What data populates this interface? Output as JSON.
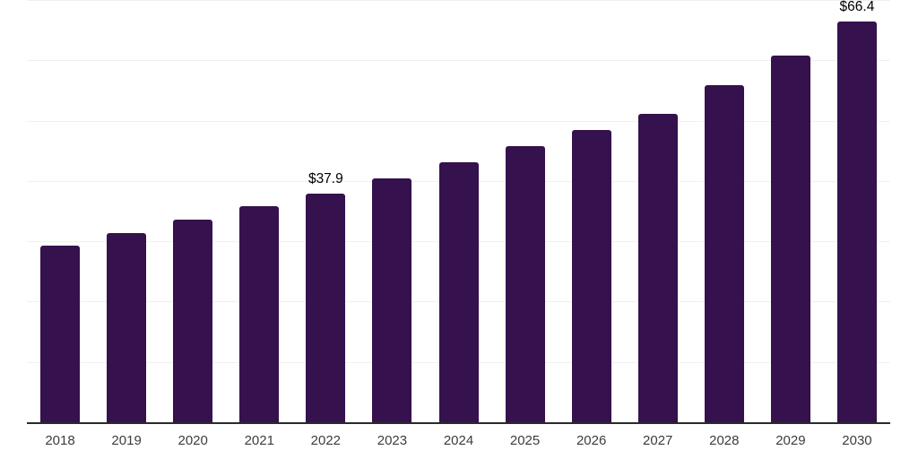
{
  "chart_data": {
    "type": "bar",
    "title": "",
    "xlabel": "",
    "ylabel": "",
    "categories": [
      "2018",
      "2019",
      "2020",
      "2021",
      "2022",
      "2023",
      "2024",
      "2025",
      "2026",
      "2027",
      "2028",
      "2029",
      "2030"
    ],
    "values": [
      29.3,
      31.4,
      33.6,
      35.8,
      37.9,
      40.4,
      43.1,
      45.8,
      48.5,
      51.2,
      55.9,
      60.8,
      66.4
    ],
    "point_labels": [
      "",
      "",
      "",
      "",
      "$37.9",
      "",
      "",
      "",
      "",
      "",
      "",
      "",
      "$66.4"
    ],
    "ylim": [
      0,
      70
    ],
    "y_gridlines": [
      10,
      20,
      30,
      40,
      50,
      60,
      70
    ],
    "grid": "horizontal-only",
    "legend_position": "none",
    "colors": {
      "bar": "#35114D",
      "gridline": "#F0F0F2",
      "axis_line": "#2B2B2B",
      "tick_label": "#3C3C3C",
      "data_label": "#000000",
      "background": "#FFFFFF"
    }
  }
}
